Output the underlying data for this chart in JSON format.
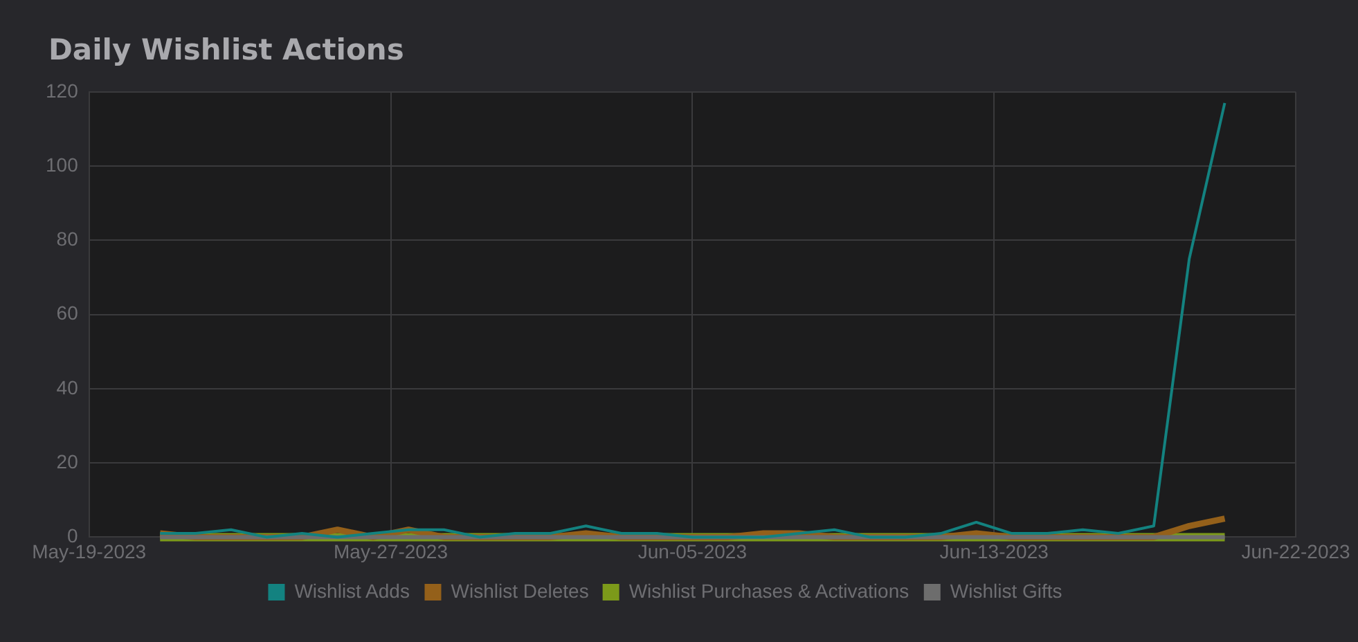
{
  "chart_data": {
    "type": "line",
    "title": "Daily Wishlist Actions",
    "x": [
      "2023-05-21",
      "2023-05-22",
      "2023-05-23",
      "2023-05-24",
      "2023-05-25",
      "2023-05-26",
      "2023-05-27",
      "2023-05-28",
      "2023-05-29",
      "2023-05-30",
      "2023-05-31",
      "2023-06-01",
      "2023-06-02",
      "2023-06-03",
      "2023-06-04",
      "2023-06-05",
      "2023-06-06",
      "2023-06-07",
      "2023-06-08",
      "2023-06-09",
      "2023-06-10",
      "2023-06-11",
      "2023-06-12",
      "2023-06-13",
      "2023-06-14",
      "2023-06-15",
      "2023-06-16",
      "2023-06-17",
      "2023-06-18",
      "2023-06-19",
      "2023-06-20"
    ],
    "series": [
      {
        "name": "Wishlist Adds",
        "color": "#138280",
        "values": [
          1,
          1,
          2,
          0,
          1,
          0,
          1,
          2,
          2,
          0,
          1,
          1,
          3,
          1,
          1,
          0,
          0,
          0,
          1,
          2,
          0,
          0,
          1,
          4,
          1,
          1,
          2,
          1,
          3,
          75,
          117
        ]
      },
      {
        "name": "Wishlist Deletes",
        "color": "#94601a",
        "values": [
          1,
          0,
          0,
          0,
          0,
          2,
          0,
          2,
          0,
          0,
          0,
          0,
          1,
          0,
          0,
          0,
          0,
          1,
          1,
          0,
          0,
          0,
          0,
          1,
          0,
          0,
          0,
          0,
          0,
          3,
          5
        ]
      },
      {
        "name": "Wishlist Purchases & Activations",
        "color": "#7c9a1a",
        "values": [
          0,
          0,
          0,
          0,
          0,
          0,
          0,
          0,
          0,
          0,
          0,
          0,
          0,
          0,
          0,
          0,
          0,
          0,
          0,
          0,
          0,
          0,
          0,
          0,
          0,
          0,
          0,
          0,
          0,
          0,
          0
        ]
      },
      {
        "name": "Wishlist Gifts",
        "color": "#6d6d6d",
        "values": [
          0,
          0,
          0,
          0,
          0,
          0,
          0,
          0,
          0,
          0,
          0,
          0,
          0,
          0,
          0,
          0,
          0,
          0,
          0,
          0,
          0,
          0,
          0,
          0,
          0,
          0,
          0,
          0,
          0,
          0,
          0
        ]
      }
    ],
    "xlim": [
      "2023-05-19",
      "2023-06-22"
    ],
    "xticks": [
      {
        "value": "2023-05-19",
        "label": "May-19-2023"
      },
      {
        "value": "2023-05-27T12:00",
        "label": "May-27-2023"
      },
      {
        "value": "2023-06-05",
        "label": "Jun-05-2023"
      },
      {
        "value": "2023-06-13T12:00",
        "label": "Jun-13-2023"
      },
      {
        "value": "2023-06-22",
        "label": "Jun-22-2023"
      }
    ],
    "ylim": [
      0,
      120
    ],
    "yticks": [
      0,
      20,
      40,
      60,
      80,
      100,
      120
    ],
    "grid": true,
    "legend": "bottom",
    "marker": "none",
    "line_style": "solid"
  }
}
